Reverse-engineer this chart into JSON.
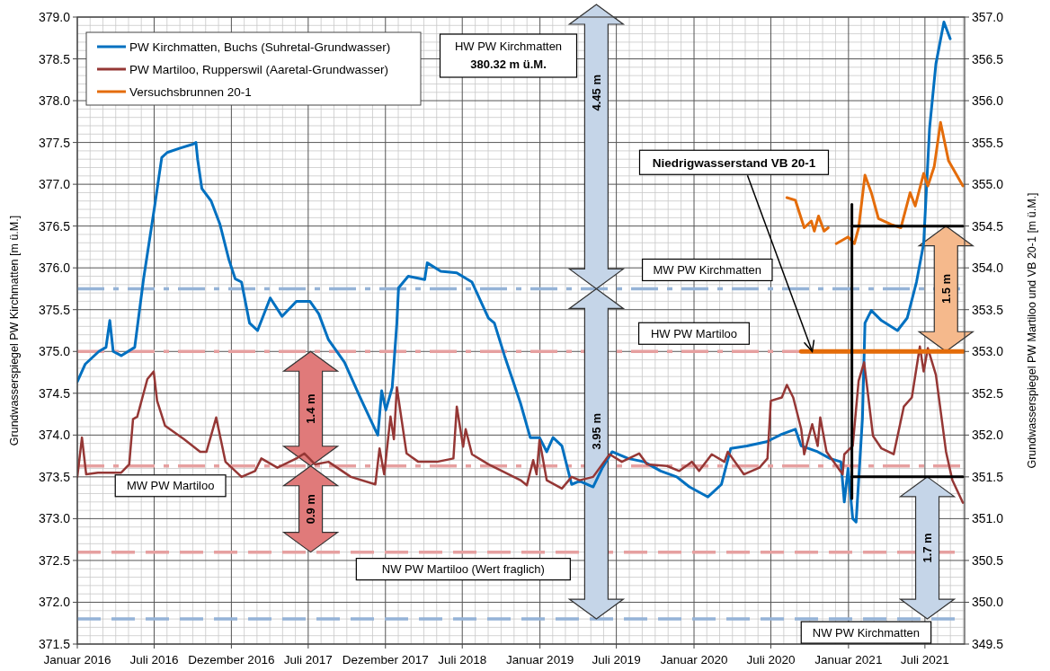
{
  "chart_data": {
    "type": "line",
    "ylabel": "Grundwasserspiegel PW Kirchmatten [m ü.M.]",
    "y2label": "Grundwasserspiegel PW Martiloo und VB 20-1 [m ü.M.]",
    "xlim": [
      "2016-01-01",
      "2021-10-03"
    ],
    "xticks": [
      {
        "value": "2016-01-01",
        "label": "Januar 2016"
      },
      {
        "value": "2016-07-01",
        "label": "Juli 2016"
      },
      {
        "value": "2016-12-31",
        "label": "Dezember 2016"
      },
      {
        "value": "2017-07-01",
        "label": "Juli 2017"
      },
      {
        "value": "2017-12-31",
        "label": "Dezember 2017"
      },
      {
        "value": "2018-07-01",
        "label": "Juli 2018"
      },
      {
        "value": "2019-01-01",
        "label": "Januar 2019"
      },
      {
        "value": "2019-07-01",
        "label": "Juli 2019"
      },
      {
        "value": "2020-01-01",
        "label": "Januar 2020"
      },
      {
        "value": "2020-07-01",
        "label": "Juli 2020"
      },
      {
        "value": "2021-01-01",
        "label": "Januar 2021"
      },
      {
        "value": "2021-07-01",
        "label": "Juli 2021"
      }
    ],
    "ylim": [
      371.5,
      379.0
    ],
    "yticks": [
      371.5,
      {
        "value": 372,
        "label": "372.0"
      },
      372.5,
      {
        "value": 373,
        "label": "373.0"
      },
      373.5,
      {
        "value": 374,
        "label": "374.0"
      },
      374.5,
      {
        "value": 375,
        "label": "375.0"
      },
      375.5,
      {
        "value": 376,
        "label": "376.0"
      },
      376.5,
      {
        "value": 377,
        "label": "377.0"
      },
      377.5,
      {
        "value": 378,
        "label": "378.0"
      },
      378.5,
      {
        "value": 379,
        "label": "379.0"
      }
    ],
    "y2lim": [
      349.5,
      357.0
    ],
    "y2ticks": [
      349.5,
      {
        "value": 350,
        "label": "350.0"
      },
      350.5,
      {
        "value": 351,
        "label": "351.0"
      },
      351.5,
      {
        "value": 352,
        "label": "352.0"
      },
      352.5,
      {
        "value": 353,
        "label": "353.0"
      },
      353.5,
      {
        "value": 354,
        "label": "354.0"
      },
      354.5,
      {
        "value": 355,
        "label": "355.0"
      },
      355.5,
      {
        "value": 356,
        "label": "356.0"
      },
      356.5,
      {
        "value": 357,
        "label": "357.0"
      }
    ],
    "grid": true,
    "legend": "top left",
    "series": [
      {
        "name": "PW Kirchmatten, Buchs (Suhretal-Grundwasser)",
        "color": "#0070c0",
        "x": [
          "2016-01-01",
          "2016-01-20",
          "2016-02-21",
          "2016-03-09",
          "2016-03-18",
          "2016-03-26",
          "2016-04-14",
          "2016-05-16",
          "2016-06-06",
          "2016-07-02",
          "2016-07-19",
          "2016-08-01",
          "2016-08-30",
          "2016-10-01",
          "2016-10-08",
          "2016-10-12",
          "2016-10-22",
          "2016-11-13",
          "2016-12-04",
          "2016-12-25",
          "2017-01-09",
          "2017-01-24",
          "2017-02-12",
          "2017-03-03",
          "2017-04-02",
          "2017-04-30",
          "2017-06-03",
          "2017-07-05",
          "2017-07-26",
          "2017-08-18",
          "2017-09-25",
          "2017-11-01",
          "2017-12-09",
          "2017-12-13",
          "2017-12-22",
          "2018-01-01",
          "2018-01-16",
          "2018-01-27",
          "2018-01-31",
          "2018-02-23",
          "2018-04-03",
          "2018-04-09",
          "2018-05-11",
          "2018-06-18",
          "2018-07-24",
          "2018-09-01",
          "2018-09-15",
          "2018-10-09",
          "2018-11-16",
          "2018-12-09",
          "2018-12-31",
          "2019-01-17",
          "2019-02-01",
          "2019-02-22",
          "2019-03-17",
          "2019-04-05",
          "2019-05-07",
          "2019-05-29",
          "2019-06-21",
          "2019-07-29",
          "2019-09-05",
          "2019-10-14",
          "2019-11-21",
          "2019-12-21",
          "2020-02-03",
          "2020-03-06",
          "2020-03-28",
          "2020-05-05",
          "2020-06-21",
          "2020-07-27",
          "2020-08-28",
          "2020-09-11",
          "2020-10-20",
          "2020-11-18",
          "2020-12-14",
          "2020-12-22",
          "2020-12-31",
          "2021-01-11",
          "2021-01-19",
          "2021-02-03",
          "2021-02-09",
          "2021-02-24",
          "2021-03-20",
          "2021-04-27",
          "2021-05-20",
          "2021-06-11",
          "2021-06-28",
          "2021-07-12",
          "2021-07-27",
          "2021-08-15",
          "2021-08-30"
        ],
        "values": [
          374.64,
          374.85,
          375.0,
          375.05,
          375.37,
          375.0,
          374.95,
          375.05,
          375.87,
          376.73,
          377.32,
          377.38,
          377.43,
          377.48,
          377.5,
          377.3,
          376.95,
          376.8,
          376.52,
          376.1,
          375.87,
          375.83,
          375.34,
          375.25,
          375.64,
          375.42,
          375.6,
          375.6,
          375.45,
          375.14,
          374.87,
          374.45,
          374.04,
          374.0,
          374.53,
          374.3,
          374.57,
          375.34,
          375.76,
          375.9,
          375.86,
          376.06,
          375.96,
          375.94,
          375.83,
          375.4,
          375.34,
          374.95,
          374.38,
          373.97,
          373.97,
          373.8,
          373.97,
          373.87,
          373.41,
          373.45,
          373.38,
          373.61,
          373.8,
          373.72,
          373.68,
          373.57,
          373.5,
          373.38,
          373.26,
          373.41,
          373.84,
          373.87,
          373.92,
          374.01,
          374.07,
          373.87,
          373.8,
          373.72,
          373.68,
          373.2,
          373.6,
          373.0,
          372.96,
          374.2,
          375.34,
          375.49,
          375.37,
          375.25,
          375.4,
          375.83,
          376.29,
          377.67,
          378.44,
          378.94,
          378.74
        ]
      },
      {
        "name": "PW Martiloo, Rupperswil (Aaretal-Grundwasser)",
        "color": "#953735",
        "axis": "y2",
        "x": [
          "2016-01-01",
          "2016-01-12",
          "2016-01-22",
          "2016-02-19",
          "2016-04-14",
          "2016-05-03",
          "2016-05-12",
          "2016-05-22",
          "2016-06-15",
          "2016-06-30",
          "2016-07-08",
          "2016-07-27",
          "2016-09-10",
          "2016-10-18",
          "2016-11-02",
          "2016-11-25",
          "2016-12-17",
          "2017-01-24",
          "2017-02-25",
          "2017-03-12",
          "2017-04-19",
          "2017-06-03",
          "2017-06-22",
          "2017-07-17",
          "2017-08-18",
          "2017-10-10",
          "2017-12-07",
          "2017-12-17",
          "2017-12-28",
          "2018-01-12",
          "2018-01-20",
          "2018-01-27",
          "2018-02-19",
          "2018-03-19",
          "2018-05-02",
          "2018-06-10",
          "2018-06-18",
          "2018-07-03",
          "2018-07-09",
          "2018-07-24",
          "2018-09-01",
          "2018-11-16",
          "2018-12-01",
          "2018-12-16",
          "2018-12-24",
          "2018-12-31",
          "2019-01-17",
          "2019-02-22",
          "2019-03-17",
          "2019-04-05",
          "2019-05-07",
          "2019-06-15",
          "2019-07-14",
          "2019-08-24",
          "2019-09-12",
          "2019-10-29",
          "2019-11-27",
          "2019-12-27",
          "2020-01-13",
          "2020-02-12",
          "2020-03-13",
          "2020-03-21",
          "2020-04-28",
          "2020-06-04",
          "2020-06-23",
          "2020-07-01",
          "2020-07-27",
          "2020-08-08",
          "2020-08-23",
          "2020-09-11",
          "2020-09-18",
          "2020-10-07",
          "2020-10-20",
          "2020-10-26",
          "2020-11-10",
          "2020-12-18",
          "2020-12-22",
          "2021-01-11",
          "2021-01-25",
          "2021-02-07",
          "2021-02-28",
          "2021-03-20",
          "2021-04-18",
          "2021-05-12",
          "2021-05-31",
          "2021-06-19",
          "2021-06-28",
          "2021-07-08",
          "2021-07-27",
          "2021-08-20",
          "2021-09-04",
          "2021-09-29"
        ],
        "values": [
          351.5,
          351.97,
          351.53,
          351.55,
          351.55,
          351.65,
          352.19,
          352.22,
          352.67,
          352.76,
          352.41,
          352.11,
          351.95,
          351.8,
          351.8,
          352.21,
          351.68,
          351.5,
          351.57,
          351.72,
          351.61,
          351.72,
          351.78,
          351.65,
          351.68,
          351.5,
          351.41,
          351.84,
          351.53,
          352.22,
          351.95,
          352.57,
          351.78,
          351.68,
          351.68,
          351.72,
          352.34,
          351.86,
          352.07,
          351.77,
          351.65,
          351.46,
          351.4,
          351.7,
          351.53,
          351.94,
          351.46,
          351.36,
          351.5,
          351.46,
          351.5,
          351.77,
          351.68,
          351.78,
          351.65,
          351.63,
          351.57,
          351.68,
          351.57,
          351.77,
          351.68,
          351.8,
          351.53,
          351.61,
          351.72,
          352.41,
          352.45,
          352.6,
          352.45,
          352.07,
          351.77,
          352.13,
          351.87,
          352.21,
          351.8,
          351.53,
          351.77,
          351.87,
          352.65,
          352.87,
          351.99,
          351.84,
          351.77,
          352.34,
          352.45,
          353.06,
          352.76,
          353.04,
          352.72,
          351.8,
          351.46,
          351.19
        ]
      },
      {
        "name": "Versuchsbrunnen 20-1",
        "color": "#e46c0a",
        "axis": "y2",
        "x": [
          "2020-08-08",
          "2020-08-28",
          "2020-09-18",
          "2020-10-05",
          "2020-10-12",
          "2020-10-22",
          "2020-11-04",
          "2020-11-14",
          "2020-11-28",
          "2020-12-03",
          "2020-12-31",
          "2021-01-15",
          "2021-01-25",
          "2021-02-09",
          "2021-02-24",
          "2021-03-13",
          "2021-04-12",
          "2021-05-05",
          "2021-05-27",
          "2021-06-08",
          "2021-06-28",
          "2021-07-08",
          "2021-07-23",
          "2021-08-07",
          "2021-08-26",
          "2021-09-29"
        ],
        "values": [
          354.84,
          354.81,
          354.48,
          354.56,
          354.44,
          354.62,
          354.44,
          354.48,
          null,
          354.29,
          354.37,
          354.29,
          354.48,
          355.11,
          354.9,
          354.59,
          354.52,
          354.48,
          354.9,
          354.74,
          355.13,
          354.98,
          355.21,
          355.74,
          355.28,
          354.98
        ]
      },
      {
        "color": "#e46c0a",
        "axis": "y2",
        "x": [
          "2020-09-11",
          "2021-09-29"
        ],
        "values": [
          353.0,
          353.0
        ]
      },
      {
        "color": "#000000",
        "axis": "y2",
        "x": [
          "2021-01-09",
          "2021-09-29"
        ],
        "values": [
          354.5,
          354.5
        ]
      },
      {
        "color": "#000000",
        "axis": "y2",
        "x": [
          "2021-01-09",
          "2021-09-29"
        ],
        "values": [
          351.5,
          351.5
        ]
      },
      {
        "color": "#000000",
        "axis": "y2",
        "x": [
          "2021-01-09",
          "2021-01-09"
        ],
        "values": [
          351.24,
          354.76
        ]
      }
    ],
    "ref_lines": [
      {
        "axis": "y",
        "value": 375.75,
        "label": "MW PW Kirchmatten",
        "color": "#95b3d7",
        "line_style": "dashdot"
      },
      {
        "axis": "y2",
        "value": 353.0,
        "label": "HW PW Martiloo",
        "color": "#e6a0a0",
        "line_style": "dashdot"
      },
      {
        "axis": "y2",
        "value": 351.63,
        "label": "MW PW Martiloo",
        "color": "#e6a0a0",
        "line_style": "dashdot"
      },
      {
        "axis": "y2",
        "value": 350.6,
        "label": "NW PW Martiloo (Wert fraglich)",
        "color": "#e6a0a0",
        "line_style": "dashed"
      },
      {
        "axis": "y",
        "value": 371.8,
        "label": "NW PW Kirchmatten",
        "color": "#95b3d7",
        "line_style": "dashed"
      }
    ],
    "annotations": [
      "HW PW Kirchmatten\n380.32 m ü.M.",
      "4.45 m",
      "3.95 m",
      "1.4 m",
      "0.9 m",
      "1.5 m",
      "1.7 m",
      {
        "text": "Niedrigwasserstand VB 20-1",
        "x": "2020-10-07",
        "y": 375.0
      }
    ]
  }
}
